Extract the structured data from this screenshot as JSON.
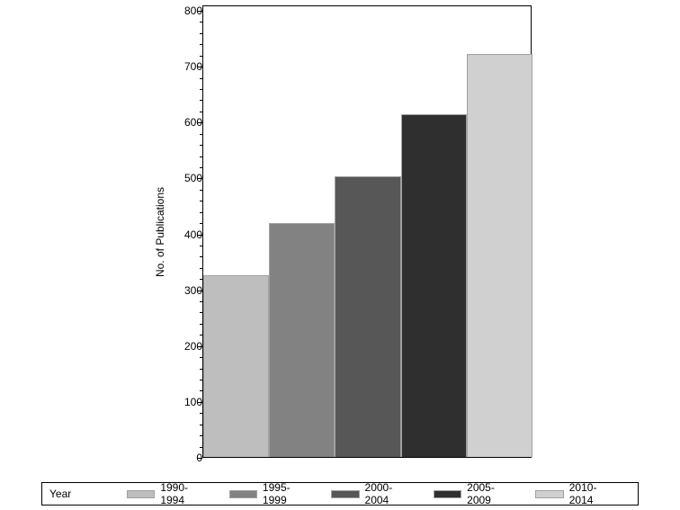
{
  "chart_data": {
    "type": "bar",
    "title": "",
    "xlabel": "",
    "ylabel": "No. of Publications",
    "ylim": [
      0,
      800
    ],
    "yticks": [
      0,
      100,
      200,
      300,
      400,
      500,
      600,
      700,
      800
    ],
    "grid": false,
    "legend_position": "bottom",
    "legend_title": "Year",
    "categories": [
      "1990-1994",
      "1995-1999",
      "2000-2004",
      "2005-2009",
      "2010-2014"
    ],
    "values": [
      325,
      418,
      503,
      613,
      721
    ],
    "colors": [
      "#bebebe",
      "#828282",
      "#575757",
      "#2f2f2f",
      "#d0d0d0"
    ]
  }
}
